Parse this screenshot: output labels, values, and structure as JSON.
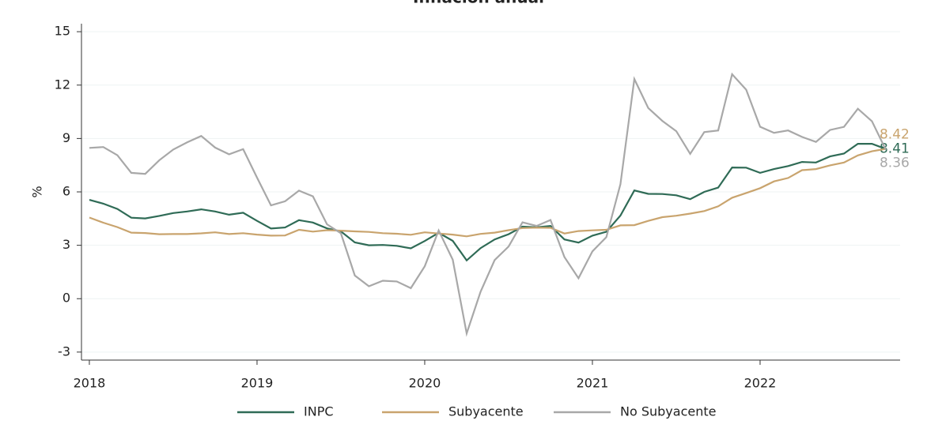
{
  "chart_data": {
    "type": "line",
    "title": "Inflación anual",
    "ylabel": "%",
    "x": [
      2018,
      2018.083,
      2018.167,
      2018.25,
      2018.333,
      2018.417,
      2018.5,
      2018.583,
      2018.667,
      2018.75,
      2018.833,
      2018.917,
      2019,
      2019.083,
      2019.167,
      2019.25,
      2019.333,
      2019.417,
      2019.5,
      2019.583,
      2019.667,
      2019.75,
      2019.833,
      2019.917,
      2020,
      2020.083,
      2020.167,
      2020.25,
      2020.333,
      2020.417,
      2020.5,
      2020.583,
      2020.667,
      2020.75,
      2020.833,
      2020.917,
      2021,
      2021.083,
      2021.167,
      2021.25,
      2021.333,
      2021.417,
      2021.5,
      2021.583,
      2021.667,
      2021.75,
      2021.833,
      2021.917,
      2022,
      2022.083,
      2022.167,
      2022.25,
      2022.333,
      2022.417,
      2022.5,
      2022.583,
      2022.667,
      2022.75
    ],
    "series": [
      {
        "name": "INPC",
        "color": "#2f6b56",
        "values": [
          5.55,
          5.34,
          5.04,
          4.55,
          4.51,
          4.65,
          4.81,
          4.9,
          5.02,
          4.9,
          4.72,
          4.83,
          4.37,
          3.94,
          4.0,
          4.41,
          4.28,
          3.95,
          3.78,
          3.16,
          3.0,
          3.02,
          2.97,
          2.83,
          3.24,
          3.7,
          3.25,
          2.15,
          2.84,
          3.33,
          3.62,
          4.05,
          4.01,
          4.09,
          3.33,
          3.15,
          3.54,
          3.76,
          4.67,
          6.08,
          5.89,
          5.88,
          5.81,
          5.59,
          6.0,
          6.24,
          7.37,
          7.36,
          7.07,
          7.28,
          7.45,
          7.68,
          7.65,
          7.99,
          8.15,
          8.7,
          8.7,
          8.41
        ]
      },
      {
        "name": "Subyacente",
        "color": "#c9a46e",
        "values": [
          4.56,
          4.27,
          4.02,
          3.71,
          3.69,
          3.62,
          3.63,
          3.63,
          3.67,
          3.73,
          3.63,
          3.68,
          3.6,
          3.54,
          3.55,
          3.87,
          3.77,
          3.85,
          3.82,
          3.78,
          3.75,
          3.68,
          3.65,
          3.59,
          3.73,
          3.66,
          3.6,
          3.5,
          3.64,
          3.71,
          3.85,
          3.97,
          3.99,
          3.98,
          3.66,
          3.8,
          3.84,
          3.87,
          4.12,
          4.13,
          4.37,
          4.58,
          4.66,
          4.78,
          4.92,
          5.19,
          5.67,
          5.94,
          6.21,
          6.59,
          6.78,
          7.22,
          7.28,
          7.49,
          7.65,
          8.05,
          8.28,
          8.42
        ]
      },
      {
        "name": "No Subyacente",
        "color": "#a8a8a8",
        "values": [
          8.47,
          8.52,
          8.06,
          7.07,
          7.01,
          7.78,
          8.38,
          8.78,
          9.14,
          8.49,
          8.11,
          8.4,
          6.8,
          5.24,
          5.47,
          6.07,
          5.75,
          4.18,
          3.67,
          1.3,
          0.7,
          1.01,
          0.97,
          0.59,
          1.82,
          3.83,
          2.19,
          -1.95,
          0.39,
          2.17,
          2.93,
          4.29,
          4.09,
          4.42,
          2.34,
          1.15,
          2.66,
          3.46,
          6.43,
          12.34,
          10.71,
          9.99,
          9.41,
          8.14,
          9.36,
          9.45,
          12.61,
          11.74,
          9.66,
          9.32,
          9.45,
          9.09,
          8.81,
          9.48,
          9.65,
          10.67,
          9.97,
          8.36
        ]
      }
    ],
    "xlim": [
      2017.953,
      2022.835
    ],
    "xticks": [
      2018,
      2019,
      2020,
      2021,
      2022
    ],
    "ylim": [
      -3.45,
      15.45
    ],
    "yticks": [
      -3,
      0,
      3,
      6,
      9,
      12,
      15
    ],
    "grid": true,
    "legend": "bottom"
  }
}
